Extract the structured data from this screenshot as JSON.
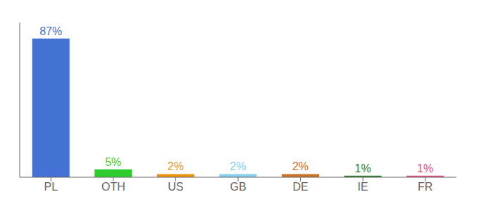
{
  "chart_data": {
    "type": "bar",
    "categories": [
      "PL",
      "OTH",
      "US",
      "GB",
      "DE",
      "IE",
      "FR"
    ],
    "values": [
      87,
      5,
      2,
      2,
      2,
      1,
      1
    ],
    "value_labels": [
      "87%",
      "5%",
      "2%",
      "2%",
      "2%",
      "1%",
      "1%"
    ],
    "colors": [
      "#4472d4",
      "#2ecc2e",
      "#e8960e",
      "#87ceeb",
      "#c8722a",
      "#2e7d2e",
      "#e05080"
    ],
    "ylim": [
      0,
      97
    ],
    "grid": false,
    "tick_labels": "x"
  }
}
